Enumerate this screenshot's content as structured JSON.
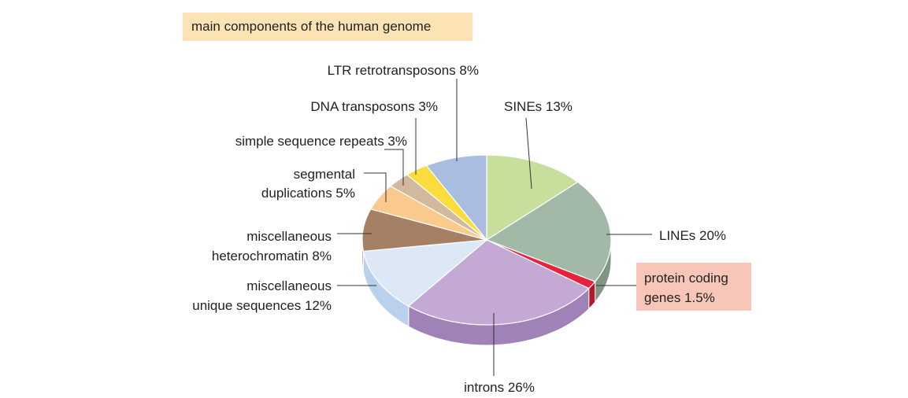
{
  "chart_data": {
    "type": "pie",
    "title": "main components of the human genome",
    "unit": "%",
    "slices": [
      {
        "label": "SINEs 13%",
        "value": 13,
        "top_color": "#c8de9d",
        "side_color": "#a4bd79"
      },
      {
        "label": "LINEs 20%",
        "value": 20,
        "top_color": "#a3b9a7",
        "side_color": "#7f9684"
      },
      {
        "label": "protein coding genes 1.5%",
        "value": 1.5,
        "top_color": "#e8213c",
        "side_color": "#b3182d"
      },
      {
        "label": "introns 26%",
        "value": 26,
        "top_color": "#c3a9d4",
        "side_color": "#9e82b8"
      },
      {
        "label": "miscellaneous unique sequences 12%",
        "value": 12,
        "top_color": "#dce8f6",
        "side_color": "#b9d1ec"
      },
      {
        "label": "miscellaneous heterochromatin 8%",
        "value": 8,
        "top_color": "#a68064",
        "side_color": "#7e5e47"
      },
      {
        "label": "segmental duplications 5%",
        "value": 5,
        "top_color": "#f9ca8c",
        "side_color": "#d8a663"
      },
      {
        "label": "simple sequence repeats 3%",
        "value": 3,
        "top_color": "#d2b99d",
        "side_color": "#ac9479"
      },
      {
        "label": "DNA transposons 3%",
        "value": 3,
        "top_color": "#fadc3c",
        "side_color": "#d0b522"
      },
      {
        "label": "LTR retrotransposons 8%",
        "value": 8,
        "top_color": "#a9bde1",
        "side_color": "#8398c0"
      }
    ]
  },
  "labels": {
    "title": "main components of the human genome",
    "ltr": "LTR retrotransposons 8%",
    "dna": "DNA transposons 3%",
    "simple": "simple sequence repeats 3%",
    "segmental_1": "segmental",
    "segmental_2": "duplications 5%",
    "hetero_1": "miscellaneous",
    "hetero_2": "heterochromatin 8%",
    "unique_1": "miscellaneous",
    "unique_2": "unique sequences 12%",
    "sines": "SINEs 13%",
    "lines": "LINEs 20%",
    "protein_1": "protein coding",
    "protein_2": "genes 1.5%",
    "introns": "introns 26%"
  }
}
